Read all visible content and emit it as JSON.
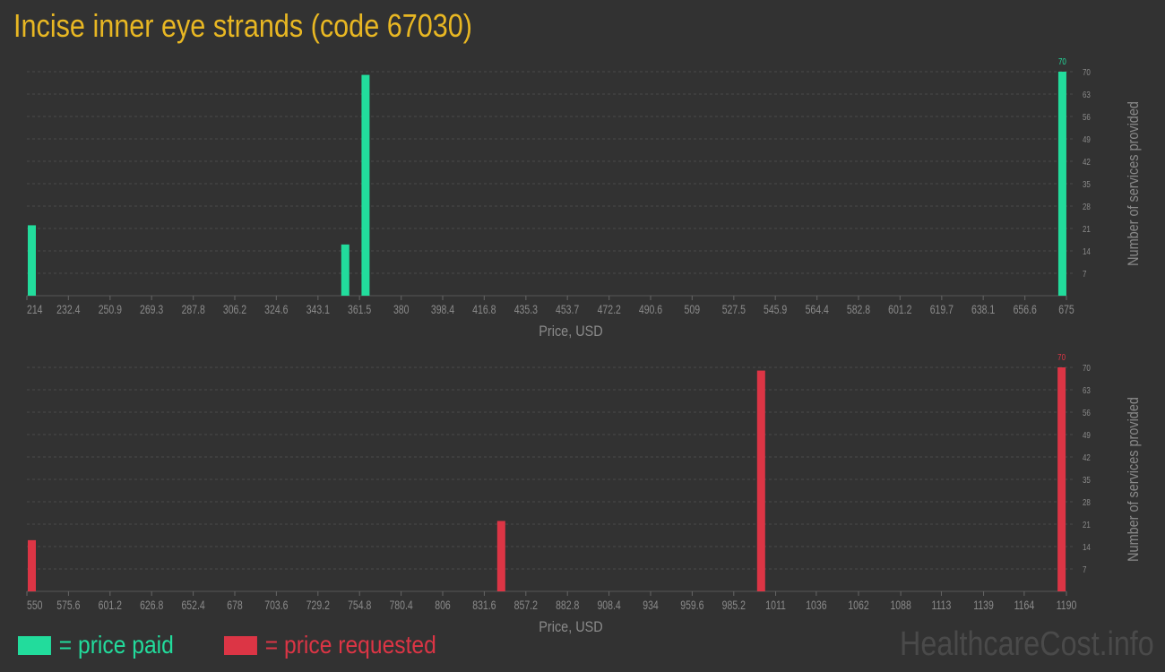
{
  "title": "Incise inner eye strands (code 67030)",
  "legend": [
    {
      "label": "= price paid",
      "color": "#22dc9c"
    },
    {
      "label": "= price requested",
      "color": "#dc3545"
    }
  ],
  "watermark": "HealthcareCost.info",
  "chart_data": [
    {
      "type": "bar",
      "name": "price paid",
      "color": "#22dc9c",
      "xlabel": "Price, USD",
      "ylabel": "Number of services provided",
      "xlim": [
        214,
        675
      ],
      "ylim": [
        0,
        70
      ],
      "x_ticks": [
        "214",
        "232.4",
        "250.9",
        "269.3",
        "287.8",
        "306.2",
        "324.6",
        "343.1",
        "361.5",
        "380",
        "398.4",
        "416.8",
        "435.3",
        "453.7",
        "472.2",
        "490.6",
        "509",
        "527.5",
        "545.9",
        "564.4",
        "582.8",
        "601.2",
        "619.7",
        "638.1",
        "656.6",
        "675"
      ],
      "y_ticks": [
        7,
        14,
        21,
        28,
        35,
        42,
        49,
        56,
        63,
        70
      ],
      "grid": true,
      "bars": [
        {
          "x": 214,
          "y": 22
        },
        {
          "x": 353,
          "y": 16
        },
        {
          "x": 362,
          "y": 69
        },
        {
          "x": 671,
          "y": 70
        }
      ],
      "max_label": "70"
    },
    {
      "type": "bar",
      "name": "price requested",
      "color": "#dc3545",
      "xlabel": "Price, USD",
      "ylabel": "Number of services provided",
      "xlim": [
        550,
        1190
      ],
      "ylim": [
        0,
        70
      ],
      "x_ticks": [
        "550",
        "575.6",
        "601.2",
        "626.8",
        "652.4",
        "678",
        "703.6",
        "729.2",
        "754.8",
        "780.4",
        "806",
        "831.6",
        "857.2",
        "882.8",
        "908.4",
        "934",
        "959.6",
        "985.2",
        "1011",
        "1036",
        "1062",
        "1088",
        "1113",
        "1139",
        "1164",
        "1190"
      ],
      "y_ticks": [
        7,
        14,
        21,
        28,
        35,
        42,
        49,
        56,
        63,
        70
      ],
      "grid": true,
      "bars": [
        {
          "x": 550,
          "y": 16
        },
        {
          "x": 839,
          "y": 22
        },
        {
          "x": 999,
          "y": 69
        },
        {
          "x": 1184,
          "y": 70
        }
      ],
      "max_label": "70"
    }
  ]
}
